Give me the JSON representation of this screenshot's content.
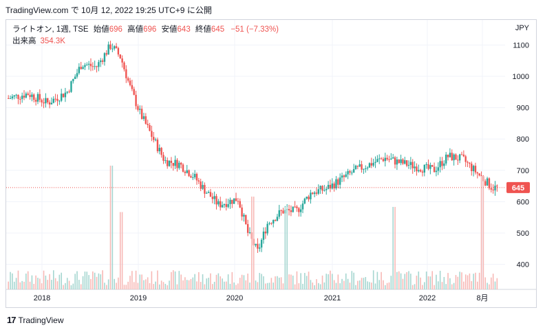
{
  "header": {
    "text": "TradingView.com で 10月 12, 2022 19:25 UTC+9 に公開"
  },
  "legend": {
    "symbol": "ライトオン, 1週, TSE",
    "open_label": "始値",
    "open": "696",
    "high_label": "高値",
    "high": "696",
    "low_label": "安値",
    "low": "643",
    "close_label": "終値",
    "close": "645",
    "change": "−51 (−7.33%)",
    "volume_label": "出来高",
    "volume": "354.3K"
  },
  "footer": {
    "brand": "TradingView",
    "logo": "tradingview-logo-icon"
  },
  "colors": {
    "up": "#26a69a",
    "down": "#ef5350",
    "vol_up": "#a5d6d0",
    "vol_down": "#f7b8b5",
    "grid": "#f0f3fa"
  },
  "chart_data": {
    "type": "candlestick",
    "currency": "JPY",
    "interval": "1週",
    "y_ticks": [
      400,
      500,
      600,
      700,
      800,
      900,
      1000,
      1100
    ],
    "ylim": [
      320,
      1180
    ],
    "x_ticks": [
      "2018",
      "2019",
      "2020",
      "2021",
      "2022",
      "8月"
    ],
    "last_price": 645,
    "last_price_label": "645",
    "close_series": [
      {
        "t": 0,
        "v": 930
      },
      {
        "t": 0.04,
        "v": 945
      },
      {
        "t": 0.08,
        "v": 915
      },
      {
        "t": 0.12,
        "v": 950
      },
      {
        "t": 0.15,
        "v": 1040
      },
      {
        "t": 0.18,
        "v": 1030
      },
      {
        "t": 0.21,
        "v": 1100
      },
      {
        "t": 0.23,
        "v": 1060
      },
      {
        "t": 0.25,
        "v": 960
      },
      {
        "t": 0.27,
        "v": 880
      },
      {
        "t": 0.3,
        "v": 790
      },
      {
        "t": 0.32,
        "v": 730
      },
      {
        "t": 0.35,
        "v": 720
      },
      {
        "t": 0.38,
        "v": 680
      },
      {
        "t": 0.4,
        "v": 640
      },
      {
        "t": 0.43,
        "v": 590
      },
      {
        "t": 0.47,
        "v": 610
      },
      {
        "t": 0.49,
        "v": 500
      },
      {
        "t": 0.51,
        "v": 440
      },
      {
        "t": 0.53,
        "v": 530
      },
      {
        "t": 0.56,
        "v": 570
      },
      {
        "t": 0.59,
        "v": 570
      },
      {
        "t": 0.62,
        "v": 630
      },
      {
        "t": 0.65,
        "v": 640
      },
      {
        "t": 0.68,
        "v": 670
      },
      {
        "t": 0.71,
        "v": 700
      },
      {
        "t": 0.74,
        "v": 720
      },
      {
        "t": 0.77,
        "v": 740
      },
      {
        "t": 0.8,
        "v": 725
      },
      {
        "t": 0.84,
        "v": 710
      },
      {
        "t": 0.87,
        "v": 700
      },
      {
        "t": 0.9,
        "v": 745
      },
      {
        "t": 0.93,
        "v": 735
      },
      {
        "t": 0.96,
        "v": 690
      },
      {
        "t": 0.99,
        "v": 645
      }
    ],
    "volume_peaks": [
      {
        "t": 0.21,
        "v": 1.0
      },
      {
        "t": 0.23,
        "v": 0.55
      },
      {
        "t": 0.5,
        "v": 0.7
      },
      {
        "t": 0.57,
        "v": 0.6
      },
      {
        "t": 0.79,
        "v": 0.6
      },
      {
        "t": 0.97,
        "v": 0.9
      }
    ]
  }
}
